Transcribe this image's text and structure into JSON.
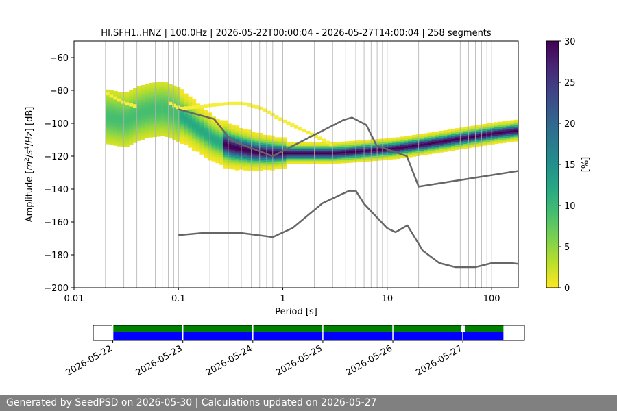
{
  "chart_data": [
    {
      "type": "heatmap",
      "title": "HI.SFH1..HNZ | 100.0Hz | 2026-05-22T00:00:04 - 2026-05-27T14:00:04 | 258 segments",
      "xlabel": "Period [s]",
      "ylabel": "Amplitude [m²/s⁴/Hz] [dB]",
      "xscale": "log",
      "xlim": [
        0.01,
        180
      ],
      "ylim": [
        -200,
        -50
      ],
      "xticks": [
        0.01,
        0.1,
        1,
        10,
        100
      ],
      "xtick_labels": [
        "0.01",
        "0.1",
        "1",
        "10",
        "100"
      ],
      "yticks": [
        -60,
        -80,
        -100,
        -120,
        -140,
        -160,
        -180,
        -200
      ],
      "ytick_labels": [
        "−60",
        "−80",
        "−100",
        "−120",
        "−140",
        "−160",
        "−180",
        "−200"
      ],
      "grid": "vertical lines at period bins",
      "colormap": "viridis_r",
      "colorbar": {
        "label": "[%]",
        "range": [
          0,
          30
        ],
        "ticks": [
          0,
          5,
          10,
          15,
          20,
          25,
          30
        ],
        "tick_labels": [
          "0",
          "5",
          "10",
          "15",
          "20",
          "25",
          "30"
        ]
      },
      "mode_curve": {
        "x": [
          0.02,
          0.03,
          0.04,
          0.05,
          0.07,
          0.1,
          0.15,
          0.2,
          0.3,
          0.5,
          0.8,
          1.2,
          2,
          3,
          5,
          8,
          12,
          20,
          40,
          100,
          180
        ],
        "y": [
          -96,
          -98,
          -94,
          -92,
          -91,
          -95,
          -103,
          -109,
          -114,
          -117,
          -118,
          -118,
          -118,
          -118,
          -117,
          -116,
          -115,
          -113,
          -110,
          -106,
          -104
        ]
      },
      "upper_band_curve": {
        "x": [
          0.02,
          0.03,
          0.04,
          0.06,
          0.08,
          0.1,
          0.15,
          0.2,
          0.3,
          0.4,
          0.6,
          1,
          2,
          3,
          4,
          5,
          7,
          10,
          20
        ],
        "y": [
          -82,
          -88,
          -90,
          -90,
          -88,
          -91,
          -90,
          -89,
          -88,
          -88,
          -91,
          -99,
          -108,
          -114,
          -116,
          -117,
          -117,
          -116,
          -113
        ],
        "color": "#f5ee3a"
      },
      "series": [
        {
          "name": "NHNM",
          "color": "#666666",
          "x": [
            0.1,
            0.22,
            0.32,
            0.8,
            3.8,
            4.6,
            6.3,
            7.9,
            15.4,
            20,
            354.8
          ],
          "y": [
            -91.5,
            -97.4,
            -110.5,
            -120,
            -98,
            -96.5,
            -101,
            -113.5,
            -120,
            -138.5,
            -126
          ]
        },
        {
          "name": "NLNM",
          "color": "#666666",
          "x": [
            0.1,
            0.17,
            0.4,
            0.8,
            1.24,
            2.4,
            4.3,
            5,
            6,
            10,
            12,
            15.6,
            21.9,
            31.6,
            45,
            70,
            101,
            154,
            328
          ],
          "y": [
            -168,
            -166.7,
            -166.7,
            -169.2,
            -163.7,
            -148.6,
            -141.1,
            -141.1,
            -149,
            -163.8,
            -166.2,
            -162.1,
            -177.5,
            -185,
            -187.5,
            -187.5,
            -185,
            -185,
            -187.5
          ]
        }
      ]
    },
    {
      "type": "timeline",
      "xtick_labels": [
        "2026-05-22",
        "2026-05-23",
        "2026-05-24",
        "2026-05-25",
        "2026-05-26",
        "2026-05-27"
      ],
      "data_days": [
        {
          "start": 0.0,
          "end": 5.58
        }
      ],
      "used_days": [
        {
          "start": 0.0,
          "end": 4.97
        },
        {
          "start": 5.03,
          "end": 5.58
        }
      ],
      "x_range_days": [
        -0.28,
        5.88
      ],
      "colors": {
        "data": "#0000ff",
        "used": "#008000"
      }
    }
  ],
  "footer": "Generated by SeedPSD on 2026-05-30 | Calculations updated on 2026-05-27"
}
